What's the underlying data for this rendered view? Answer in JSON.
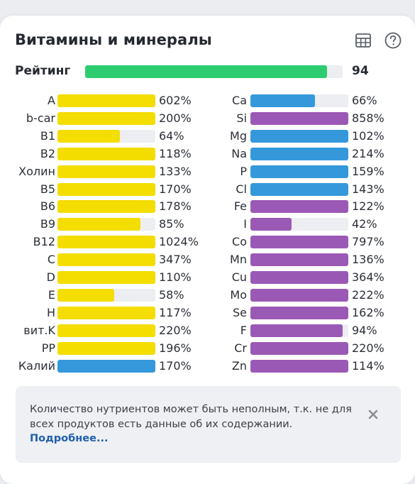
{
  "header": {
    "title": "Витамины и минералы",
    "table_icon": "table-icon",
    "help_icon": "help-circle-icon"
  },
  "rating": {
    "label": "Рейтинг",
    "value": "94",
    "fill_percent": 94,
    "color": "#2ecc71"
  },
  "colors": {
    "vitamin": "#f4dd00",
    "potassium": "#3498db",
    "blue": "#3498db",
    "purple": "#9b59b6",
    "track": "#eceef1"
  },
  "left_column": [
    {
      "name": "A",
      "percent": "602%",
      "fill": 100,
      "color": "vitamin"
    },
    {
      "name": "b-car",
      "percent": "200%",
      "fill": 100,
      "color": "vitamin"
    },
    {
      "name": "B1",
      "percent": "64%",
      "fill": 64,
      "color": "vitamin"
    },
    {
      "name": "B2",
      "percent": "118%",
      "fill": 100,
      "color": "vitamin"
    },
    {
      "name": "Холин",
      "percent": "133%",
      "fill": 100,
      "color": "vitamin"
    },
    {
      "name": "B5",
      "percent": "170%",
      "fill": 100,
      "color": "vitamin"
    },
    {
      "name": "B6",
      "percent": "178%",
      "fill": 100,
      "color": "vitamin"
    },
    {
      "name": "B9",
      "percent": "85%",
      "fill": 85,
      "color": "vitamin"
    },
    {
      "name": "B12",
      "percent": "1024%",
      "fill": 100,
      "color": "vitamin"
    },
    {
      "name": "C",
      "percent": "347%",
      "fill": 100,
      "color": "vitamin"
    },
    {
      "name": "D",
      "percent": "110%",
      "fill": 100,
      "color": "vitamin"
    },
    {
      "name": "E",
      "percent": "58%",
      "fill": 58,
      "color": "vitamin"
    },
    {
      "name": "H",
      "percent": "117%",
      "fill": 100,
      "color": "vitamin"
    },
    {
      "name": "вит.K",
      "percent": "220%",
      "fill": 100,
      "color": "vitamin"
    },
    {
      "name": "PP",
      "percent": "196%",
      "fill": 100,
      "color": "vitamin"
    },
    {
      "name": "Калий",
      "percent": "170%",
      "fill": 100,
      "color": "potassium"
    }
  ],
  "right_column": [
    {
      "name": "Ca",
      "percent": "66%",
      "fill": 66,
      "color": "blue"
    },
    {
      "name": "Si",
      "percent": "858%",
      "fill": 100,
      "color": "purple"
    },
    {
      "name": "Mg",
      "percent": "102%",
      "fill": 100,
      "color": "blue"
    },
    {
      "name": "Na",
      "percent": "214%",
      "fill": 100,
      "color": "blue"
    },
    {
      "name": "P",
      "percent": "159%",
      "fill": 100,
      "color": "blue"
    },
    {
      "name": "Cl",
      "percent": "143%",
      "fill": 100,
      "color": "blue"
    },
    {
      "name": "Fe",
      "percent": "122%",
      "fill": 100,
      "color": "purple"
    },
    {
      "name": "I",
      "percent": "42%",
      "fill": 42,
      "color": "purple"
    },
    {
      "name": "Co",
      "percent": "797%",
      "fill": 100,
      "color": "purple"
    },
    {
      "name": "Mn",
      "percent": "136%",
      "fill": 100,
      "color": "purple"
    },
    {
      "name": "Cu",
      "percent": "364%",
      "fill": 100,
      "color": "purple"
    },
    {
      "name": "Mo",
      "percent": "222%",
      "fill": 100,
      "color": "purple"
    },
    {
      "name": "Se",
      "percent": "162%",
      "fill": 100,
      "color": "purple"
    },
    {
      "name": "F",
      "percent": "94%",
      "fill": 94,
      "color": "purple"
    },
    {
      "name": "Cr",
      "percent": "220%",
      "fill": 100,
      "color": "purple"
    },
    {
      "name": "Zn",
      "percent": "114%",
      "fill": 100,
      "color": "purple"
    }
  ],
  "notice": {
    "text": "Количество нутриентов может быть неполным, т.к. не для всех продуктов есть данные об их содержании.",
    "link": "Подробнее...",
    "close_icon": "close-icon"
  }
}
